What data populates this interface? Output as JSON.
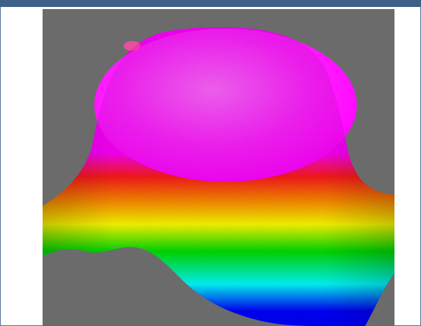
{
  "image": {
    "kind": "3d-surface-render",
    "colors": {
      "frame_border": "#4a6a8f",
      "top_bar": "#3e5f86",
      "background": "#6b6b6b",
      "magenta": "#ff00ff",
      "red": "#ff1a1a",
      "orange": "#ff8a00",
      "yellow": "#ffff00",
      "green": "#00e000",
      "cyan": "#00ffff",
      "blue": "#0000ff"
    }
  }
}
